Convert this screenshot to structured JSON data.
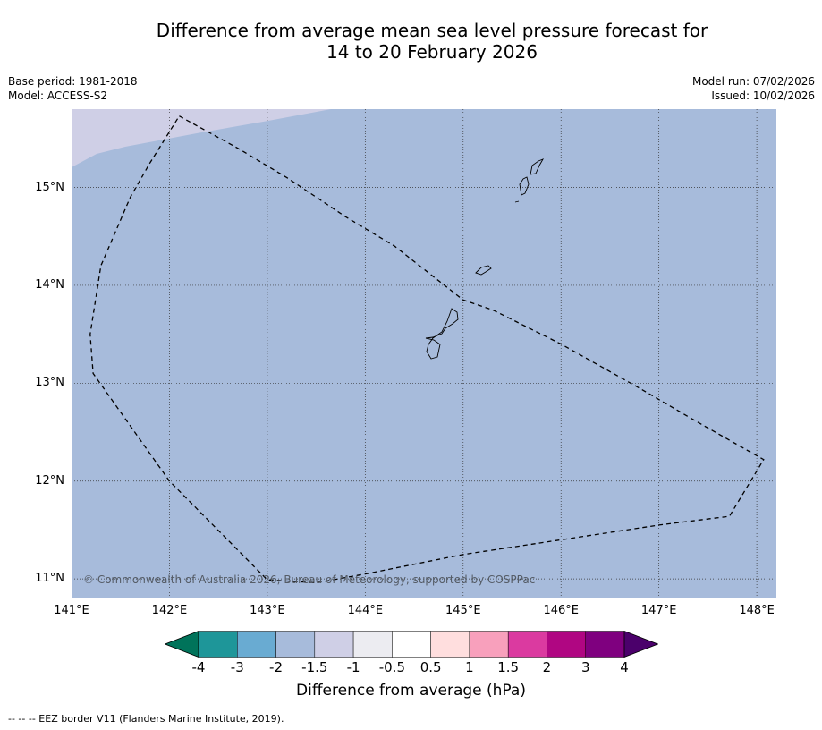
{
  "title": {
    "line1": "Difference from average mean sea level pressure forecast for",
    "line2": "14 to 20 February 2026"
  },
  "meta_left": {
    "base_period": "Base period: 1981-2018",
    "model": "Model: ACCESS-S2"
  },
  "meta_right": {
    "model_run": "Model run: 07/02/2026",
    "issued": "Issued: 10/02/2026"
  },
  "map": {
    "lon_range": [
      141.0,
      148.2
    ],
    "lat_range": [
      10.8,
      15.8
    ],
    "copyright": "© Commonwealth of Australia 2026, Bureau of Meteorology, supported by COSPPac",
    "latitude_labels": [
      {
        "value": 15,
        "label": "15°N"
      },
      {
        "value": 14,
        "label": "14°N"
      },
      {
        "value": 13,
        "label": "13°N"
      },
      {
        "value": 12,
        "label": "12°N"
      },
      {
        "value": 11,
        "label": "11°N"
      }
    ],
    "longitude_labels": [
      {
        "value": 141,
        "label": "141°E"
      },
      {
        "value": 142,
        "label": "142°E"
      },
      {
        "value": 143,
        "label": "143°E"
      },
      {
        "value": 144,
        "label": "144°E"
      },
      {
        "value": 145,
        "label": "145°E"
      },
      {
        "value": 146,
        "label": "146°E"
      },
      {
        "value": 147,
        "label": "147°E"
      },
      {
        "value": 148,
        "label": "148°E"
      }
    ],
    "anomaly_fields": [
      {
        "category": "-2 to -1.5",
        "color": "#a7bbdb",
        "description": "most of map"
      },
      {
        "category": "-1.5 to -1",
        "color": "#cfcfe6",
        "description": "north-west corner"
      }
    ],
    "eez_border": [
      [
        142.1,
        15.73
      ],
      [
        142.7,
        15.4
      ],
      [
        143.2,
        15.1
      ],
      [
        143.8,
        14.7
      ],
      [
        144.3,
        14.4
      ],
      [
        145.0,
        13.85
      ],
      [
        145.3,
        13.75
      ],
      [
        146.0,
        13.4
      ],
      [
        146.8,
        12.95
      ],
      [
        147.4,
        12.6
      ],
      [
        148.07,
        12.22
      ],
      [
        147.72,
        11.64
      ],
      [
        147.0,
        11.55
      ],
      [
        146.0,
        11.4
      ],
      [
        145.0,
        11.25
      ],
      [
        144.0,
        11.05
      ],
      [
        143.5,
        10.96
      ],
      [
        143.0,
        10.99
      ],
      [
        142.0,
        12.0
      ],
      [
        141.22,
        13.1
      ],
      [
        141.19,
        13.5
      ],
      [
        141.3,
        14.2
      ],
      [
        141.6,
        14.9
      ],
      [
        141.8,
        15.25
      ],
      [
        142.1,
        15.73
      ]
    ]
  },
  "colorbar": {
    "colors": [
      "#00735a",
      "#1e9699",
      "#69abd2",
      "#a7bbdb",
      "#cfcfe6",
      "#ececf1",
      "#ffffff",
      "#ffdede",
      "#f8a0bc",
      "#db3aa0",
      "#b00682",
      "#7f007f",
      "#4b006b"
    ],
    "labels": [
      "-4",
      "-3",
      "-2",
      "-1.5",
      "-1",
      "-0.5",
      "0.5",
      "1",
      "1.5",
      "2",
      "3",
      "4"
    ],
    "title": "Difference from average (hPa)"
  },
  "footnote": "--  --  -- EEZ border V11 (Flanders Marine Institute, 2019)."
}
